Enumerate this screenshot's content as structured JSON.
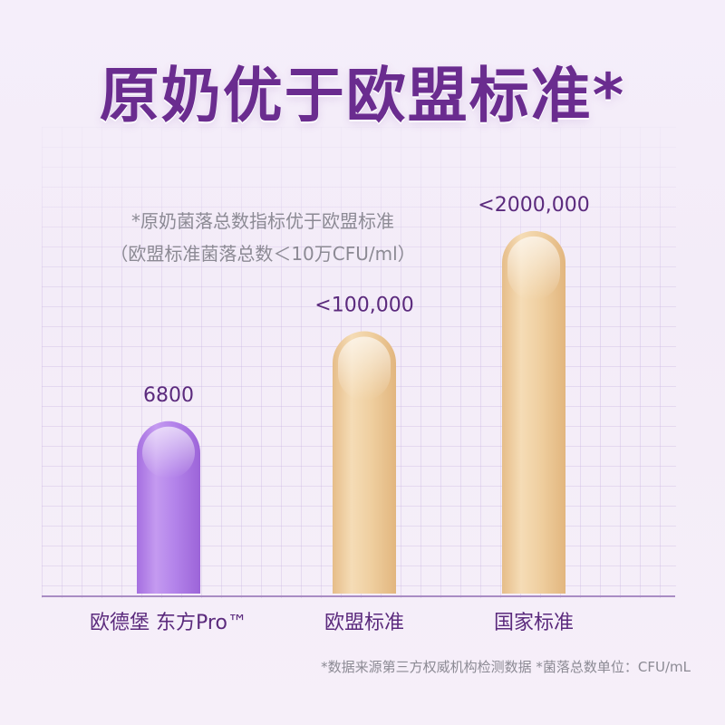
{
  "title": "原奶优于欧盟标准*",
  "note": {
    "line1": "*原奶菌落总数指标优于欧盟标准",
    "line2": "（欧盟标准菌落总数＜10万CFU/ml）"
  },
  "footnote": "*数据来源第三方权威机构检测数据 *菌落总数单位：CFU/mL",
  "colors": {
    "title": "#6a2c8f",
    "brand_bar": "#b07ee6",
    "standard_bar": "#ecc899",
    "value_text": "#5b2a7d",
    "axis": "#a98cc4"
  },
  "chart_data": {
    "type": "bar",
    "categories": [
      "欧德堡 东方Pro™",
      "欧盟标准",
      "国家标准"
    ],
    "values": [
      6800,
      100000,
      2000000
    ],
    "value_labels": [
      "6800",
      "<100,000",
      "<2000,000"
    ],
    "bar_styles": [
      "brand",
      "standard",
      "standard"
    ],
    "title": "原奶优于欧盟标准*",
    "xlabel": "",
    "ylabel": "",
    "scale": "non-linear (illustrative)",
    "grid": true
  }
}
